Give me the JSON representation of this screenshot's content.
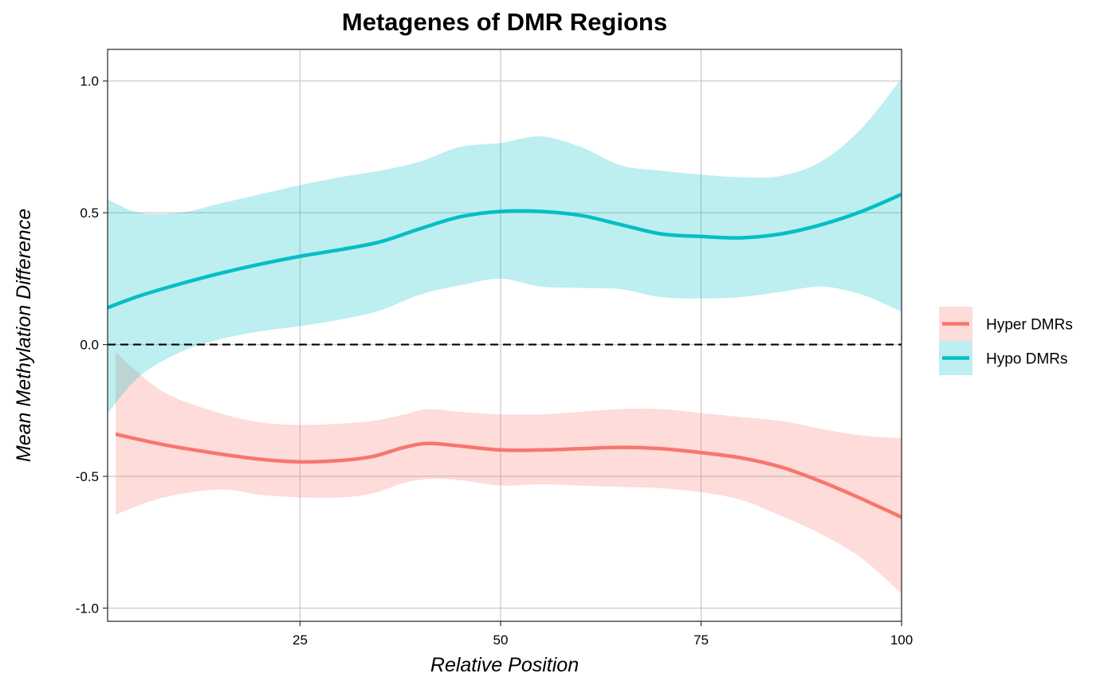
{
  "chart_data": {
    "type": "line",
    "title": "Metagenes of DMR Regions",
    "xlabel": "Relative Position",
    "ylabel": "Mean Methylation Difference",
    "xlim": [
      1,
      100
    ],
    "ylim": [
      -1.05,
      1.12
    ],
    "x_ticks": [
      25,
      50,
      75,
      100
    ],
    "x_tick_labels": [
      "25",
      "50",
      "75",
      "100"
    ],
    "y_ticks": [
      -1.0,
      -0.5,
      0.0,
      0.5,
      1.0
    ],
    "y_tick_labels": [
      "-1.0",
      "-0.5",
      "0.0",
      "0.5",
      "1.0"
    ],
    "grid": true,
    "legend_position": "right",
    "reference_line": {
      "y": 0,
      "style": "dashed",
      "color": "#000000"
    },
    "series": [
      {
        "name": "Hyper DMRs",
        "color": "#F8766D",
        "x": [
          2,
          8,
          15,
          20,
          25,
          30,
          34,
          38,
          41,
          45,
          50,
          55,
          60,
          65,
          70,
          75,
          80,
          85,
          90,
          95,
          100
        ],
        "y": [
          -0.34,
          -0.38,
          -0.415,
          -0.435,
          -0.445,
          -0.44,
          -0.425,
          -0.39,
          -0.375,
          -0.385,
          -0.4,
          -0.4,
          -0.395,
          -0.39,
          -0.395,
          -0.41,
          -0.43,
          -0.465,
          -0.52,
          -0.585,
          -0.655
        ],
        "lower": [
          -0.645,
          -0.58,
          -0.55,
          -0.57,
          -0.58,
          -0.58,
          -0.565,
          -0.525,
          -0.51,
          -0.515,
          -0.535,
          -0.53,
          -0.535,
          -0.54,
          -0.545,
          -0.56,
          -0.59,
          -0.65,
          -0.72,
          -0.81,
          -0.945
        ],
        "upper": [
          -0.03,
          -0.18,
          -0.26,
          -0.295,
          -0.305,
          -0.3,
          -0.29,
          -0.265,
          -0.245,
          -0.255,
          -0.265,
          -0.265,
          -0.255,
          -0.245,
          -0.245,
          -0.26,
          -0.275,
          -0.29,
          -0.32,
          -0.345,
          -0.355
        ]
      },
      {
        "name": "Hypo DMRs",
        "color": "#00BFC4",
        "x": [
          1,
          5,
          10,
          15,
          20,
          25,
          30,
          35,
          40,
          45,
          50,
          55,
          60,
          65,
          70,
          75,
          80,
          85,
          90,
          95,
          100
        ],
        "y": [
          0.14,
          0.185,
          0.23,
          0.27,
          0.305,
          0.335,
          0.36,
          0.39,
          0.44,
          0.485,
          0.505,
          0.505,
          0.49,
          0.455,
          0.42,
          0.41,
          0.405,
          0.42,
          0.455,
          0.505,
          0.57
        ],
        "lower": [
          -0.26,
          -0.12,
          -0.03,
          0.02,
          0.05,
          0.07,
          0.095,
          0.13,
          0.19,
          0.225,
          0.25,
          0.22,
          0.215,
          0.21,
          0.18,
          0.175,
          0.18,
          0.2,
          0.22,
          0.19,
          0.125
        ],
        "upper": [
          0.55,
          0.5,
          0.5,
          0.535,
          0.57,
          0.605,
          0.635,
          0.66,
          0.695,
          0.75,
          0.765,
          0.79,
          0.75,
          0.68,
          0.66,
          0.645,
          0.635,
          0.64,
          0.695,
          0.82,
          1.01
        ]
      }
    ]
  }
}
